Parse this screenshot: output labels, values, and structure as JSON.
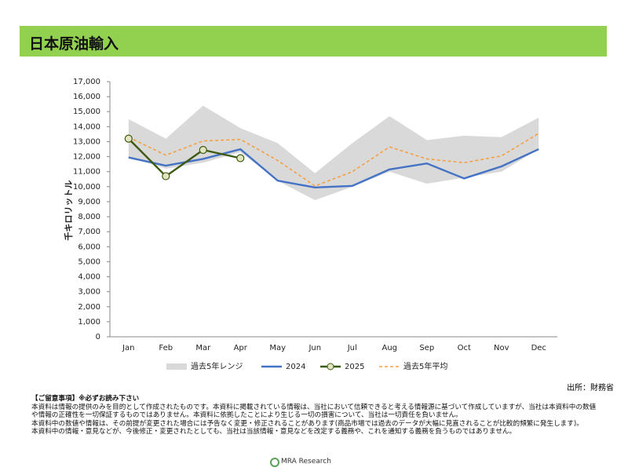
{
  "header": {
    "title": "日本原油輸入"
  },
  "chart_data": {
    "type": "line",
    "y_label": "千キロリットル",
    "categories": [
      "Jan",
      "Feb",
      "Mar",
      "Apr",
      "May",
      "Jun",
      "Jul",
      "Aug",
      "Sep",
      "Oct",
      "Nov",
      "Dec"
    ],
    "ylim": [
      0,
      17000
    ],
    "yticks": [
      0,
      {
        "value": 1000,
        "label": "1,000"
      },
      {
        "value": 2000,
        "label": "2,000"
      },
      {
        "value": 3000,
        "label": "3,000"
      },
      {
        "value": 4000,
        "label": "4,000"
      },
      {
        "value": 5000,
        "label": "5,000"
      },
      {
        "value": 6000,
        "label": "6,000"
      },
      {
        "value": 7000,
        "label": "7,000"
      },
      {
        "value": 8000,
        "label": "8,000"
      },
      {
        "value": 9000,
        "label": "9,000"
      },
      {
        "value": 10000,
        "label": "10,000"
      },
      {
        "value": 11000,
        "label": "11,000"
      },
      {
        "value": 12000,
        "label": "12,000"
      },
      {
        "value": 13000,
        "label": "13,000"
      },
      {
        "value": 14000,
        "label": "14,000"
      },
      {
        "value": 15000,
        "label": "15,000"
      },
      {
        "value": 16000,
        "label": "16,000"
      },
      {
        "value": 17000,
        "label": "17,000"
      }
    ],
    "range": {
      "name": "過去5年レンジ",
      "color": "#d9d9d9",
      "high": [
        14500,
        13200,
        15400,
        13900,
        12900,
        10900,
        12900,
        14700,
        13100,
        13400,
        13300,
        14600
      ],
      "low": [
        12000,
        11200,
        11600,
        12300,
        10400,
        9100,
        10000,
        11000,
        10200,
        10600,
        11000,
        12500
      ]
    },
    "series": [
      {
        "name": "2024",
        "color": "#4472c4",
        "values": [
          11950,
          11400,
          11850,
          12500,
          10400,
          9950,
          10050,
          11150,
          11550,
          10550,
          11350,
          12500
        ]
      },
      {
        "name": "2025",
        "color": "#3d5a12",
        "marker_fill": "#e2e5c0",
        "values": [
          13200,
          10700,
          12450,
          11900,
          null,
          null,
          null,
          null,
          null,
          null,
          null,
          null
        ]
      },
      {
        "name": "過去5年平均",
        "color": "#f4a040",
        "dashed": true,
        "values": [
          13300,
          12100,
          13050,
          13150,
          11750,
          10050,
          11000,
          12650,
          11850,
          11600,
          12050,
          13550
        ]
      }
    ]
  },
  "source": "出所：財務省",
  "notes": {
    "heading": "【ご留意事項】※必ずお読み下さい",
    "lines": [
      "本資料は情報の提供のみを目的として作成されたものです。本資料に掲載されている情報は、当社において信頼できると考える情報源に基づいて作成していますが、当社は本資料中の数値や情報の正確性を一切保証するものではありません。本資料に依拠したことにより生じる一切の損害について、当社は一切責任を負いません。",
      "本資料中の数値や情報は、その前提が変更された場合には予告なく変更・修正されることがあります(商品市場では過去のデータが大幅に見直されることが比較的頻繁に発生します)。",
      "本資料中の情報・意見などが、今後修正・変更されたとしても、当社は当該情報・意見などを改定する義務や、これを通知する義務を負うものではありません。"
    ]
  },
  "footer": {
    "logo": "MRA Research"
  }
}
